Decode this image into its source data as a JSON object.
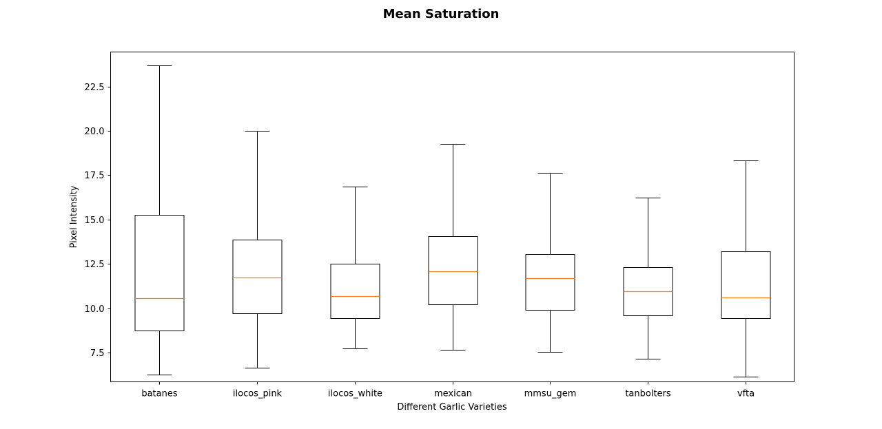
{
  "chart_data": {
    "type": "boxplot",
    "title": "Mean Saturation",
    "xlabel": "Different Garlic Varieties",
    "ylabel": "Pixel Intensity",
    "ylim": [
      5.85,
      24.45
    ],
    "yticks": [
      "7.5",
      "10.0",
      "12.5",
      "15.0",
      "17.5",
      "20.0",
      "22.5"
    ],
    "grid": false,
    "colors": {
      "box": "#000000",
      "median": "#ff7f0e",
      "background": "#ffffff"
    },
    "series": [
      {
        "category": "batanes",
        "min": 6.25,
        "q1": 8.75,
        "median": 10.55,
        "q3": 15.25,
        "max": 23.7
      },
      {
        "category": "ilocos_pink",
        "min": 6.65,
        "q1": 9.7,
        "median": 11.75,
        "q3": 13.85,
        "max": 20.0
      },
      {
        "category": "ilocos_white",
        "min": 7.75,
        "q1": 9.45,
        "median": 10.7,
        "q3": 12.5,
        "max": 16.85
      },
      {
        "category": "mexican",
        "min": 7.65,
        "q1": 10.2,
        "median": 12.1,
        "q3": 14.05,
        "max": 19.25
      },
      {
        "category": "mmsu_gem",
        "min": 7.55,
        "q1": 9.9,
        "median": 11.7,
        "q3": 13.05,
        "max": 17.65
      },
      {
        "category": "tanbolters",
        "min": 7.15,
        "q1": 9.6,
        "median": 10.95,
        "q3": 12.3,
        "max": 16.25
      },
      {
        "category": "vfta",
        "min": 6.15,
        "q1": 9.45,
        "median": 10.6,
        "q3": 13.2,
        "max": 18.35
      }
    ]
  }
}
